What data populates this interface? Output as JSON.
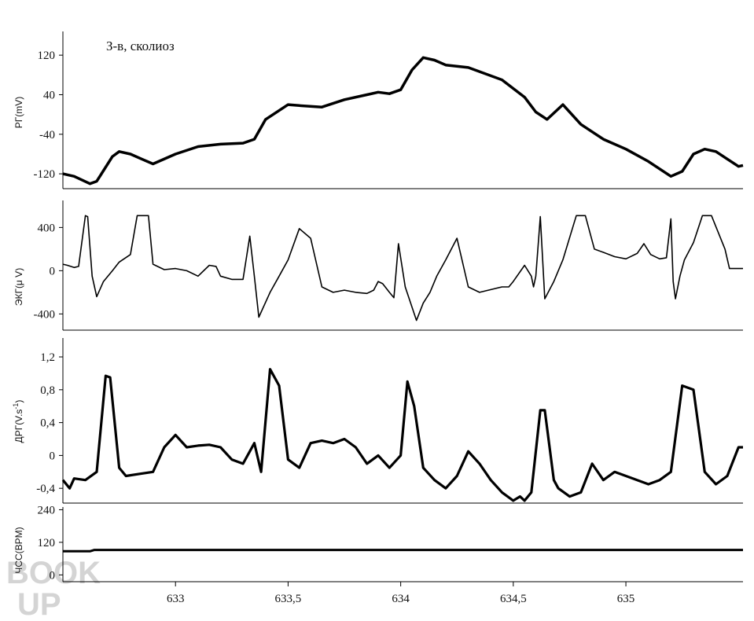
{
  "chart_data": [
    {
      "type": "line",
      "ylabel": "РГ(mV)",
      "annotation": "З-в, сколиоз",
      "yticks": [
        "120",
        "40",
        "-40",
        "-120"
      ],
      "ytick_values": [
        120,
        40,
        -40,
        -120
      ],
      "ylim": [
        -150,
        160
      ],
      "series": [
        {
          "x": [
            632.5,
            632.55,
            632.62,
            632.65,
            632.72,
            632.75,
            632.8,
            632.85,
            632.9,
            633.0,
            633.1,
            633.2,
            633.3,
            633.35,
            633.4,
            633.5,
            633.55,
            633.65,
            633.75,
            633.85,
            633.9,
            633.95,
            634.0,
            634.05,
            634.1,
            634.15,
            634.2,
            634.3,
            634.45,
            634.55,
            634.6,
            634.65,
            634.72,
            634.8,
            634.9,
            635.0,
            635.1,
            635.2,
            635.25,
            635.3,
            635.35,
            635.4,
            635.45,
            635.5,
            635.52
          ],
          "y": [
            -120,
            -125,
            -140,
            -135,
            -85,
            -75,
            -80,
            -90,
            -100,
            -80,
            -65,
            -60,
            -58,
            -50,
            -10,
            20,
            18,
            15,
            30,
            40,
            45,
            42,
            50,
            90,
            115,
            110,
            100,
            95,
            70,
            35,
            5,
            -10,
            20,
            -20,
            -50,
            -70,
            -95,
            -125,
            -115,
            -80,
            -70,
            -75,
            -90,
            -105,
            -103
          ]
        }
      ]
    },
    {
      "type": "line",
      "ylabel": "ЭКГ(μ V)",
      "yticks": [
        "400",
        "0",
        "-400"
      ],
      "ytick_values": [
        400,
        0,
        -400
      ],
      "ylim": [
        -550,
        650
      ],
      "series": [
        {
          "x": [
            632.5,
            632.52,
            632.55,
            632.57,
            632.6,
            632.61,
            632.63,
            632.65,
            632.68,
            632.72,
            632.75,
            632.8,
            632.83,
            632.88,
            632.9,
            632.95,
            633.0,
            633.05,
            633.1,
            633.15,
            633.18,
            633.2,
            633.25,
            633.3,
            633.33,
            633.35,
            633.37,
            633.42,
            633.46,
            633.5,
            633.55,
            633.6,
            633.65,
            633.7,
            633.75,
            633.8,
            633.85,
            633.88,
            633.9,
            633.92,
            633.95,
            633.97,
            633.99,
            634.02,
            634.07,
            634.1,
            634.13,
            634.16,
            634.2,
            634.25,
            634.3,
            634.35,
            634.45,
            634.48,
            634.5,
            634.55,
            634.58,
            634.59,
            634.6,
            634.62,
            634.64,
            634.68,
            634.72,
            634.78,
            634.82,
            634.86,
            634.9,
            634.95,
            635.0,
            635.05,
            635.08,
            635.11,
            635.15,
            635.18,
            635.2,
            635.21,
            635.22,
            635.24,
            635.26,
            635.3,
            635.34,
            635.38,
            635.44,
            635.46,
            635.5,
            635.52
          ],
          "y": [
            60,
            50,
            30,
            40,
            510,
            500,
            -50,
            -240,
            -100,
            0,
            80,
            150,
            510,
            510,
            60,
            10,
            20,
            0,
            -50,
            50,
            40,
            -50,
            -80,
            -80,
            320,
            -50,
            -430,
            -200,
            -50,
            100,
            390,
            300,
            -150,
            -200,
            -180,
            -200,
            -210,
            -180,
            -100,
            -120,
            -200,
            -250,
            250,
            -150,
            -460,
            -300,
            -200,
            -50,
            100,
            300,
            -150,
            -200,
            -150,
            -150,
            -100,
            50,
            -50,
            -150,
            -50,
            500,
            -260,
            -100,
            100,
            510,
            510,
            200,
            170,
            130,
            110,
            160,
            250,
            150,
            110,
            120,
            480,
            -100,
            -260,
            -50,
            100,
            260,
            510,
            510,
            200,
            20,
            20,
            20
          ]
        }
      ]
    },
    {
      "type": "line",
      "ylabel": "ДРГ(V.s",
      "ylabel_sup": "-1",
      "ylabel_end": ")",
      "yticks": [
        "1,2",
        "0,8",
        "0,4",
        "0",
        "-0,4"
      ],
      "ytick_values": [
        1.2,
        0.8,
        0.4,
        0,
        -0.4
      ],
      "ylim": [
        -0.58,
        1.43
      ],
      "series": [
        {
          "x": [
            632.5,
            632.53,
            632.55,
            632.6,
            632.65,
            632.69,
            632.71,
            632.75,
            632.78,
            632.85,
            632.9,
            632.95,
            633.0,
            633.05,
            633.1,
            633.15,
            633.2,
            633.25,
            633.3,
            633.35,
            633.38,
            633.42,
            633.46,
            633.5,
            633.55,
            633.6,
            633.65,
            633.7,
            633.75,
            633.8,
            633.85,
            633.9,
            633.95,
            634.0,
            634.03,
            634.06,
            634.1,
            634.15,
            634.2,
            634.25,
            634.3,
            634.35,
            634.4,
            634.45,
            634.5,
            634.53,
            634.55,
            634.58,
            634.62,
            634.64,
            634.68,
            634.7,
            634.75,
            634.8,
            634.85,
            634.9,
            634.95,
            635.0,
            635.05,
            635.1,
            635.15,
            635.2,
            635.25,
            635.3,
            635.35,
            635.4,
            635.45,
            635.5,
            635.52
          ],
          "y": [
            -0.3,
            -0.4,
            -0.28,
            -0.3,
            -0.2,
            0.97,
            0.95,
            -0.15,
            -0.25,
            -0.22,
            -0.2,
            0.1,
            0.25,
            0.1,
            0.12,
            0.13,
            0.1,
            -0.05,
            -0.1,
            0.15,
            -0.2,
            1.05,
            0.85,
            -0.05,
            -0.15,
            0.15,
            0.18,
            0.15,
            0.2,
            0.1,
            -0.1,
            0.0,
            -0.15,
            0.0,
            0.9,
            0.6,
            -0.15,
            -0.3,
            -0.4,
            -0.25,
            0.05,
            -0.1,
            -0.3,
            -0.45,
            -0.55,
            -0.5,
            -0.55,
            -0.45,
            0.55,
            0.55,
            -0.3,
            -0.4,
            -0.5,
            -0.45,
            -0.1,
            -0.3,
            -0.2,
            -0.25,
            -0.3,
            -0.35,
            -0.3,
            -0.2,
            0.85,
            0.8,
            -0.2,
            -0.35,
            -0.25,
            0.1,
            0.1
          ]
        }
      ]
    },
    {
      "type": "line",
      "ylabel": "ЧСС(BPM)",
      "yticks": [
        "240",
        "120",
        "0"
      ],
      "ytick_values": [
        240,
        120,
        0
      ],
      "ylim": [
        -25,
        250
      ],
      "xticks": [
        "633",
        "633,5",
        "634",
        "634,5",
        "635"
      ],
      "xtick_values": [
        633,
        633.5,
        634,
        634.5,
        635
      ],
      "xlim": [
        632.5,
        635.52
      ],
      "series": [
        {
          "x": [
            632.5,
            632.62,
            632.64,
            635.52
          ],
          "y": [
            87,
            87,
            92,
            92
          ]
        }
      ]
    }
  ],
  "watermark": [
    "BOOK",
    "UP"
  ],
  "colors": {
    "line": "#000000",
    "axis": "#000000",
    "watermark": "#d4d4d4"
  }
}
